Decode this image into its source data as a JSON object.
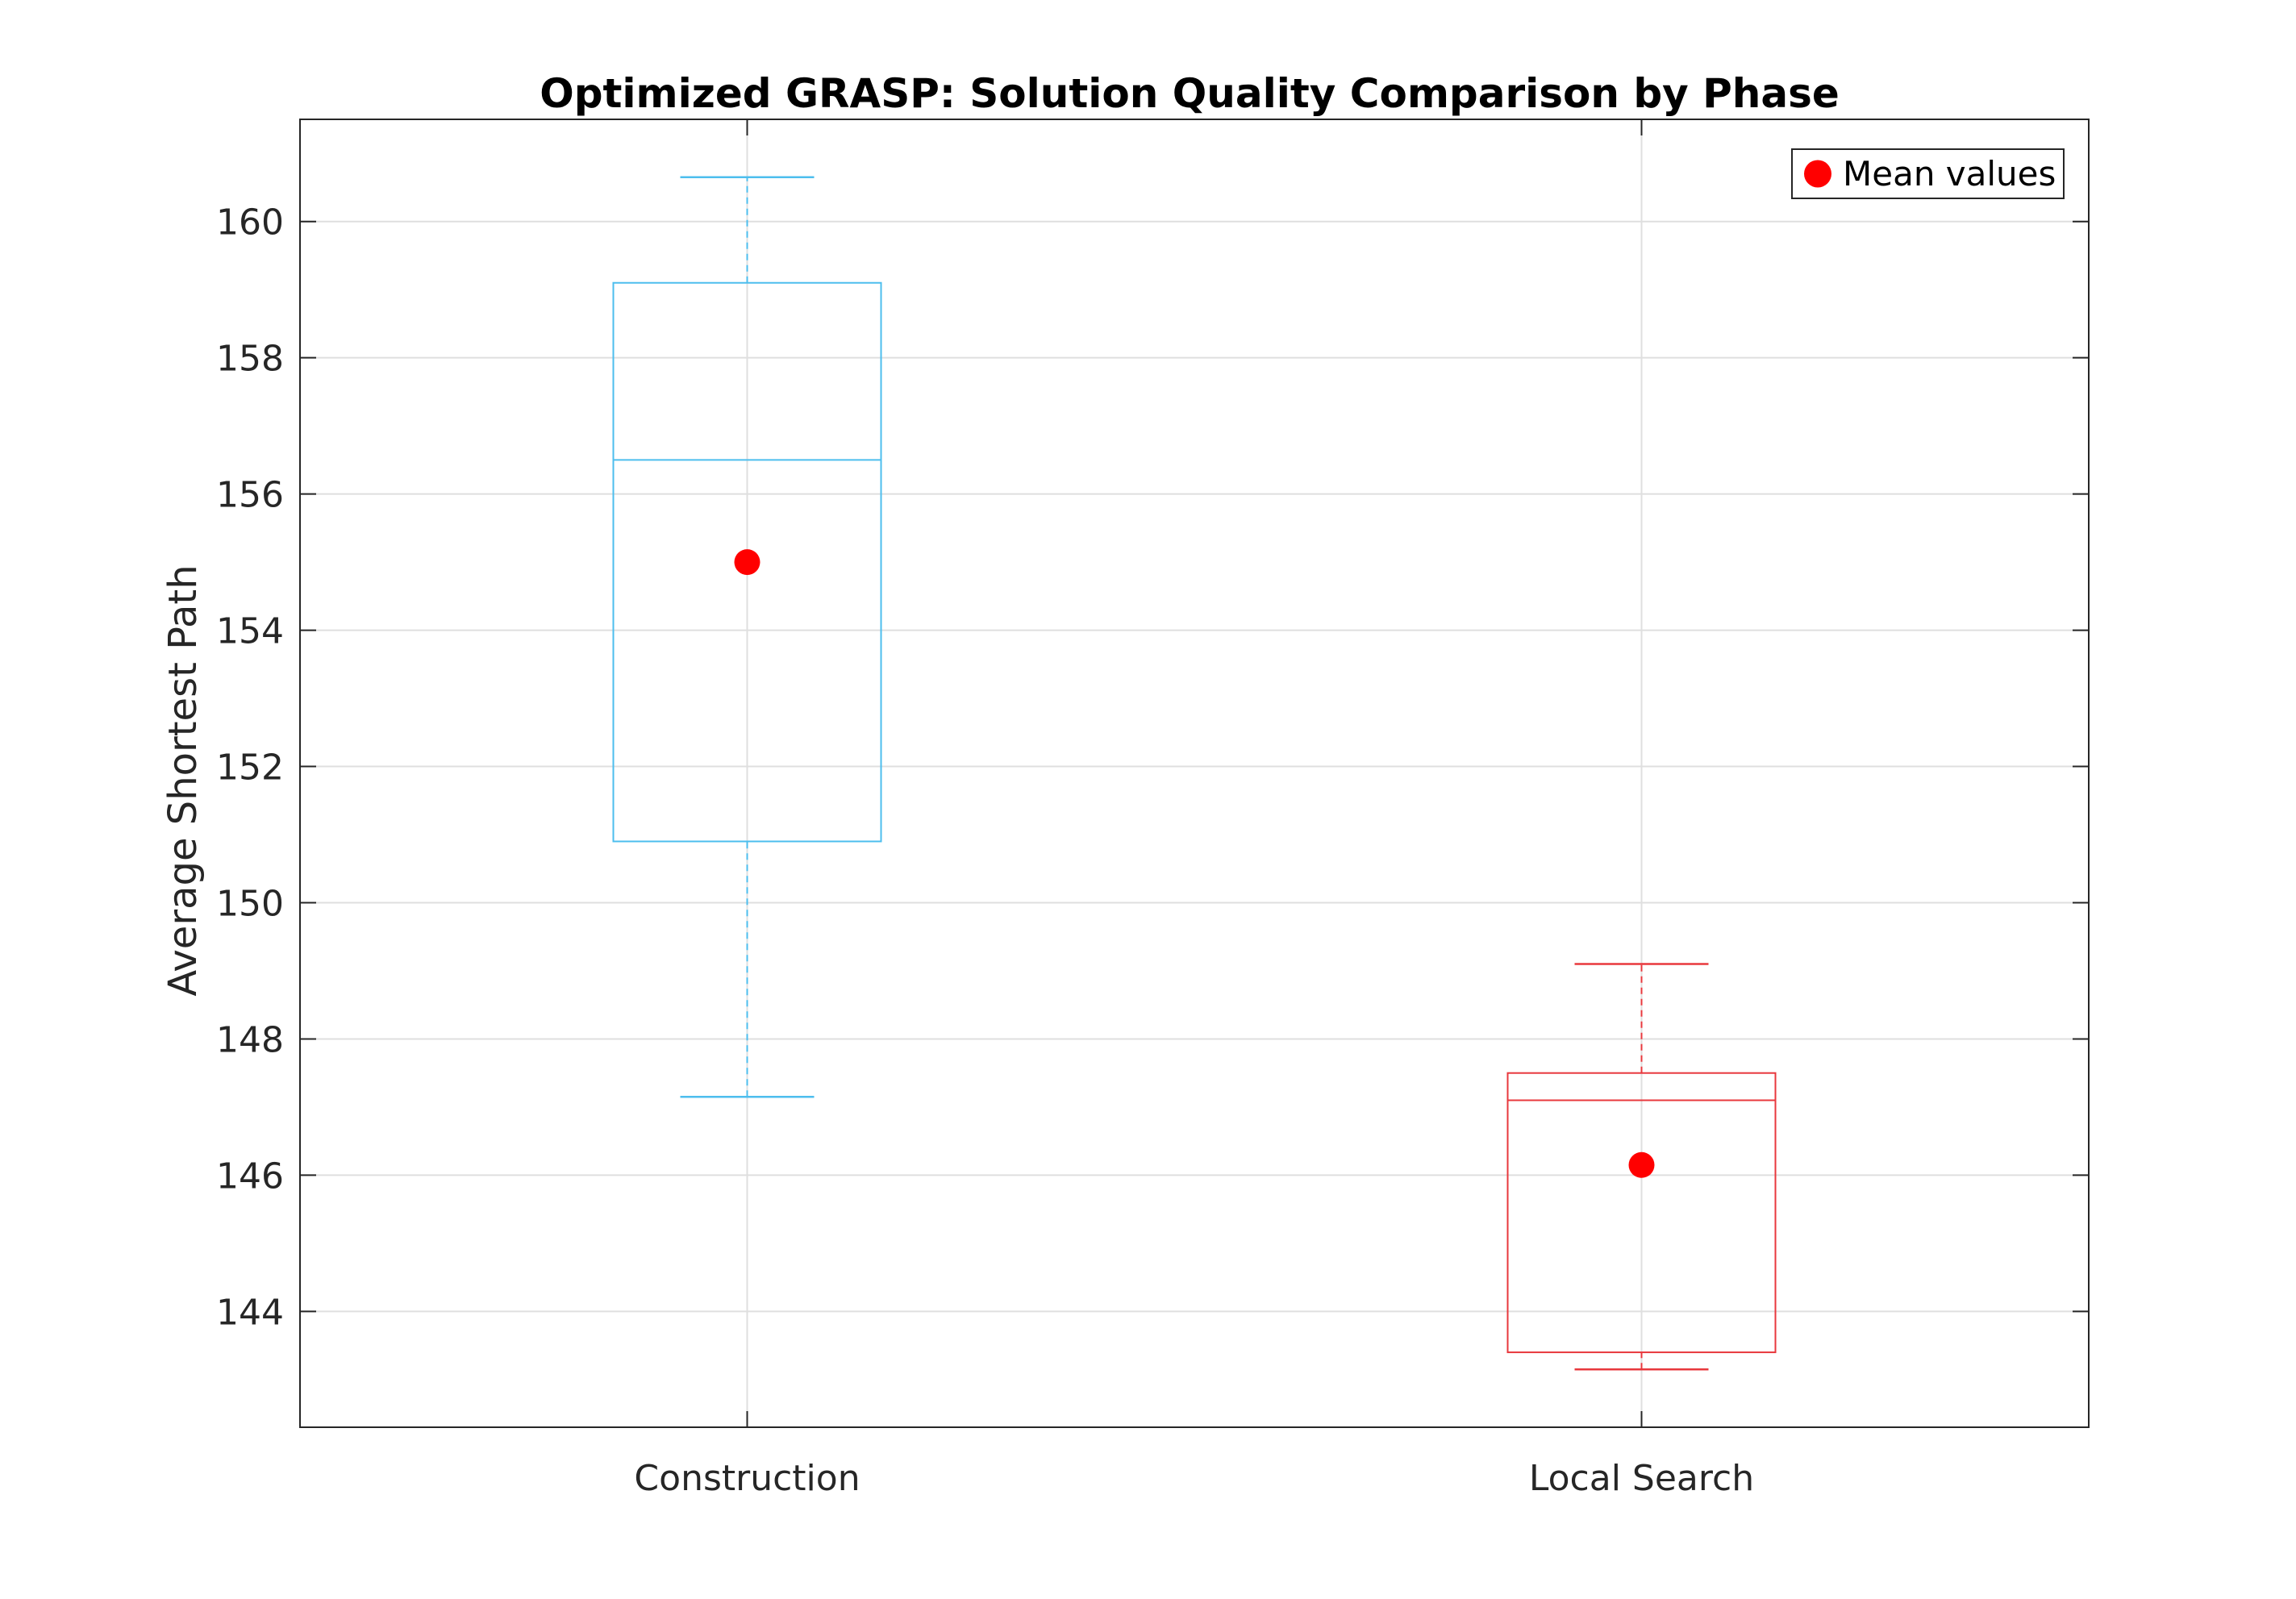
{
  "chart_data": {
    "type": "box",
    "title": "Optimized GRASP: Solution Quality Comparison by Phase",
    "xlabel": "",
    "ylabel": "Average Shortest Path",
    "categories": [
      "Construction",
      "Local Search"
    ],
    "ylim": [
      142.3,
      161.5
    ],
    "yticks": [
      144,
      146,
      148,
      150,
      152,
      154,
      156,
      158,
      160
    ],
    "grid": true,
    "legend": {
      "position": "top-right",
      "entries": [
        "Mean values"
      ]
    },
    "series": [
      {
        "category": "Construction",
        "whisker_low": 147.15,
        "q1": 150.9,
        "median": 156.5,
        "q3": 159.1,
        "whisker_high": 160.65,
        "mean": 155.0,
        "color": "#4DBEEE"
      },
      {
        "category": "Local Search",
        "whisker_low": 143.15,
        "q1": 143.4,
        "median": 147.1,
        "q3": 147.5,
        "whisker_high": 149.1,
        "mean": 146.15,
        "color": "#E8383D"
      }
    ],
    "mean_marker_color": "#FF0000"
  }
}
